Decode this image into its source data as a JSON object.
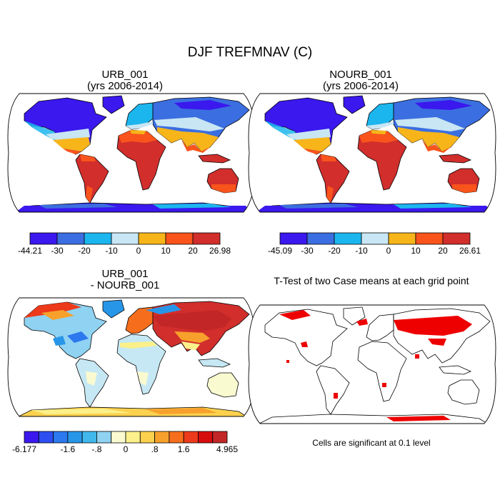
{
  "main_title": "DJF TREFMNAV (C)",
  "panels": [
    {
      "title_line1": "URB_001",
      "title_line2": "(yrs 2006-2014)"
    },
    {
      "title_line1": "NOURB_001",
      "title_line2": "(yrs 2006-2014)"
    },
    {
      "title_line1": "URB_001",
      "title_line2": "- NOURB_001"
    },
    {
      "title_line1": "T-Test of two Case means at each grid point",
      "title_line2": ""
    }
  ],
  "significance_note": "Cells are significant at 0.1 level",
  "chart_data": [
    {
      "type": "heatmap",
      "title": "URB_001 (yrs 2006-2014)",
      "variable": "DJF TREFMNAV (C)",
      "colorbar": {
        "labels": [
          "-44.21",
          "-30",
          "-20",
          "-10",
          "0",
          "10",
          "20",
          "26.98"
        ],
        "colors": [
          "#3a18ee",
          "#3b6ee0",
          "#1cb6ee",
          "#c8e6f4",
          "#f7b51a",
          "#f9541c",
          "#d12e2c"
        ],
        "min": -44.21,
        "max": 26.98
      }
    },
    {
      "type": "heatmap",
      "title": "NOURB_001 (yrs 2006-2014)",
      "variable": "DJF TREFMNAV (C)",
      "colorbar": {
        "labels": [
          "-45.09",
          "-30",
          "-20",
          "-10",
          "0",
          "10",
          "20",
          "26.61"
        ],
        "colors": [
          "#3a18ee",
          "#3b6ee0",
          "#1cb6ee",
          "#c8e6f4",
          "#f7b51a",
          "#f9541c",
          "#d12e2c"
        ],
        "min": -45.09,
        "max": 26.61
      }
    },
    {
      "type": "heatmap",
      "title": "URB_001 - NOURB_001",
      "variable": "DJF TREFMNAV (C)",
      "colorbar": {
        "labels": [
          "-6.177",
          "",
          "",
          "-1.6",
          "",
          "-.8",
          "",
          "0",
          "",
          ".8",
          "",
          "1.6",
          "",
          "",
          "4.965"
        ],
        "colors": [
          "#3a18ee",
          "#2d4ef0",
          "#2c78ee",
          "#2896e8",
          "#40b8ec",
          "#8fd2f2",
          "#fafad0",
          "#fbf08a",
          "#fbd14e",
          "#f7a12c",
          "#f66e1c",
          "#ec3a1a",
          "#d60c0c",
          "#c22626"
        ],
        "min": -6.177,
        "max": 4.965
      }
    },
    {
      "type": "heatmap",
      "title": "T-Test of two Case means at each grid point",
      "significant_color": "#ee0000",
      "significance_level": 0.1
    }
  ]
}
